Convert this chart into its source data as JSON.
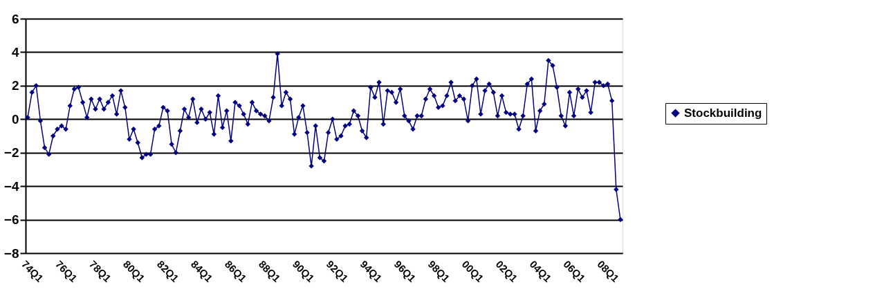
{
  "chart_data": {
    "type": "line",
    "categories": [
      null,
      "74Q1",
      null,
      null,
      null,
      null,
      null,
      null,
      null,
      "76Q1",
      null,
      null,
      null,
      null,
      null,
      null,
      null,
      "78Q1",
      null,
      null,
      null,
      null,
      null,
      null,
      null,
      "80Q1",
      null,
      null,
      null,
      null,
      null,
      null,
      null,
      "82Q1",
      null,
      null,
      null,
      null,
      null,
      null,
      null,
      "84Q1",
      null,
      null,
      null,
      null,
      null,
      null,
      null,
      "86Q1",
      null,
      null,
      null,
      null,
      null,
      null,
      null,
      "88Q1",
      null,
      null,
      null,
      null,
      null,
      null,
      null,
      "90Q1",
      null,
      null,
      null,
      null,
      null,
      null,
      null,
      "92Q1",
      null,
      null,
      null,
      null,
      null,
      null,
      null,
      "94Q1",
      null,
      null,
      null,
      null,
      null,
      null,
      null,
      "96Q1",
      null,
      null,
      null,
      null,
      null,
      null,
      null,
      "98Q1",
      null,
      null,
      null,
      null,
      null,
      null,
      null,
      "00Q1",
      null,
      null,
      null,
      null,
      null,
      null,
      null,
      "02Q1",
      null,
      null,
      null,
      null,
      null,
      null,
      null,
      "04Q1",
      null,
      null,
      null,
      null,
      null,
      null,
      null,
      "06Q1",
      null,
      null,
      null,
      null,
      null,
      null,
      null,
      "08Q1",
      null,
      null,
      null
    ],
    "series": [
      {
        "name": "Stockbuilding",
        "color": "#000080",
        "values": [
          0.1,
          1.6,
          2.0,
          -0.1,
          -1.7,
          -2.1,
          -1.0,
          -0.6,
          -0.4,
          -0.6,
          0.8,
          1.8,
          1.9,
          1.0,
          0.1,
          1.2,
          0.6,
          1.2,
          0.6,
          1.0,
          1.4,
          0.3,
          1.7,
          0.7,
          -1.2,
          -0.6,
          -1.4,
          -2.3,
          -2.1,
          -2.1,
          -0.6,
          -0.4,
          0.7,
          0.5,
          -1.5,
          -2.0,
          -0.7,
          0.6,
          0.1,
          1.2,
          -0.2,
          0.6,
          0.0,
          0.4,
          -0.9,
          1.4,
          -0.5,
          0.5,
          -1.3,
          1.0,
          0.8,
          0.3,
          -0.3,
          1.0,
          0.5,
          0.3,
          0.2,
          -0.1,
          1.3,
          3.9,
          0.8,
          1.6,
          1.2,
          -0.9,
          0.1,
          0.8,
          -0.8,
          -2.8,
          -0.4,
          -2.3,
          -2.5,
          -0.8,
          0.0,
          -1.2,
          -1.0,
          -0.4,
          -0.3,
          0.5,
          0.2,
          -0.7,
          -1.1,
          1.9,
          1.3,
          2.2,
          -0.3,
          1.7,
          1.6,
          1.0,
          1.8,
          0.2,
          -0.1,
          -0.6,
          0.2,
          0.2,
          1.2,
          1.8,
          1.4,
          0.7,
          0.8,
          1.4,
          2.2,
          1.1,
          1.4,
          1.2,
          -0.1,
          2.0,
          2.4,
          0.3,
          1.7,
          2.1,
          1.6,
          0.2,
          1.4,
          0.4,
          0.3,
          0.3,
          -0.6,
          0.2,
          2.1,
          2.4,
          -0.7,
          0.5,
          0.9,
          3.5,
          3.2,
          1.9,
          0.2,
          -0.4,
          1.6,
          0.2,
          1.8,
          1.3,
          1.7,
          0.4,
          2.2,
          2.2,
          2.0,
          2.1,
          1.1,
          -4.2,
          -6.0
        ]
      }
    ],
    "ylim": [
      -8,
      6
    ],
    "yticks": [
      -8,
      -6,
      -4,
      -2,
      0,
      2,
      4,
      6
    ],
    "grid": "y",
    "legend": "right",
    "marker": "diamond",
    "line_style": "solid"
  }
}
